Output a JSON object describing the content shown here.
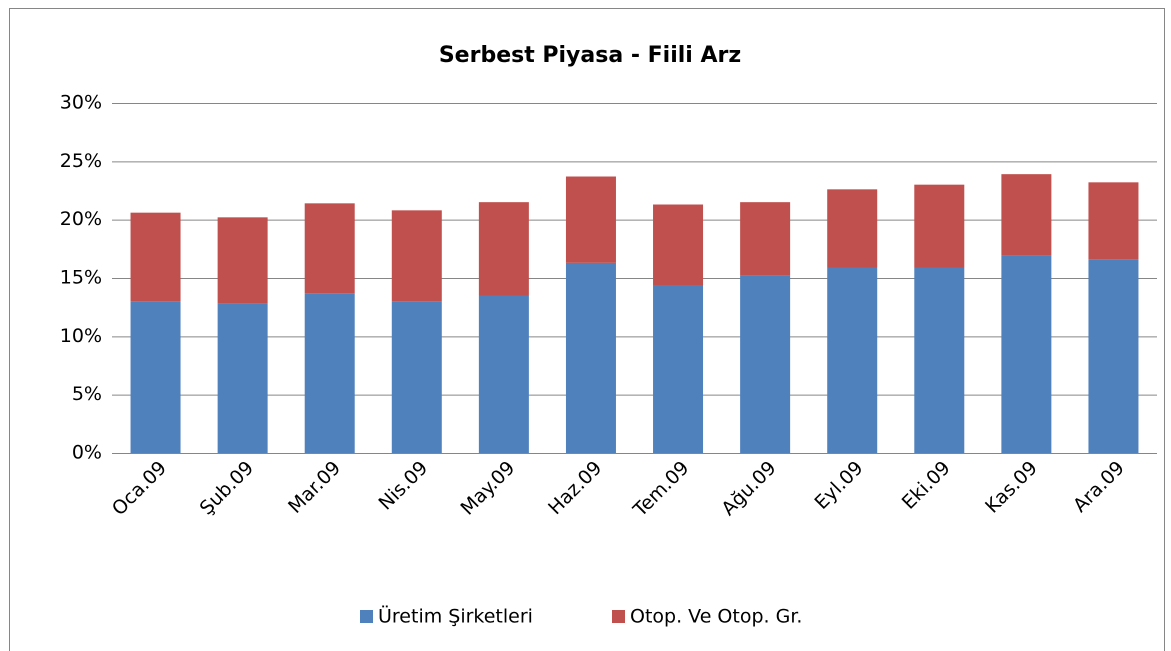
{
  "chart_data": {
    "type": "stacked_bar",
    "title": "Serbest Piyasa - Fiili Arz",
    "categories": [
      "Oca.09",
      "Şub.09",
      "Mar.09",
      "Nis.09",
      "May.09",
      "Haz.09",
      "Tem.09",
      "Ağu.09",
      "Eyl.09",
      "Eki.09",
      "Kas.09",
      "Ara.09"
    ],
    "series": [
      {
        "name": "Üretim Şirketleri",
        "color": "#4f81bd",
        "values": [
          13.0,
          12.8,
          13.7,
          13.0,
          13.5,
          16.3,
          14.4,
          15.2,
          15.9,
          15.9,
          16.9,
          16.6
        ]
      },
      {
        "name": "Otop. Ve Otop. Gr.",
        "color": "#c0504d",
        "values": [
          7.6,
          7.4,
          7.7,
          7.8,
          8.0,
          7.4,
          6.9,
          6.3,
          6.7,
          7.1,
          7.0,
          6.6
        ]
      }
    ],
    "ylim": [
      0,
      30
    ],
    "yticks": [
      {
        "value": 0,
        "label": "0%"
      },
      {
        "value": 5,
        "label": "5%"
      },
      {
        "value": 10,
        "label": "10%"
      },
      {
        "value": 15,
        "label": "15%"
      },
      {
        "value": 20,
        "label": "20%"
      },
      {
        "value": 25,
        "label": "25%"
      },
      {
        "value": 30,
        "label": "30%"
      }
    ],
    "grid": true,
    "legend": "bottom"
  }
}
